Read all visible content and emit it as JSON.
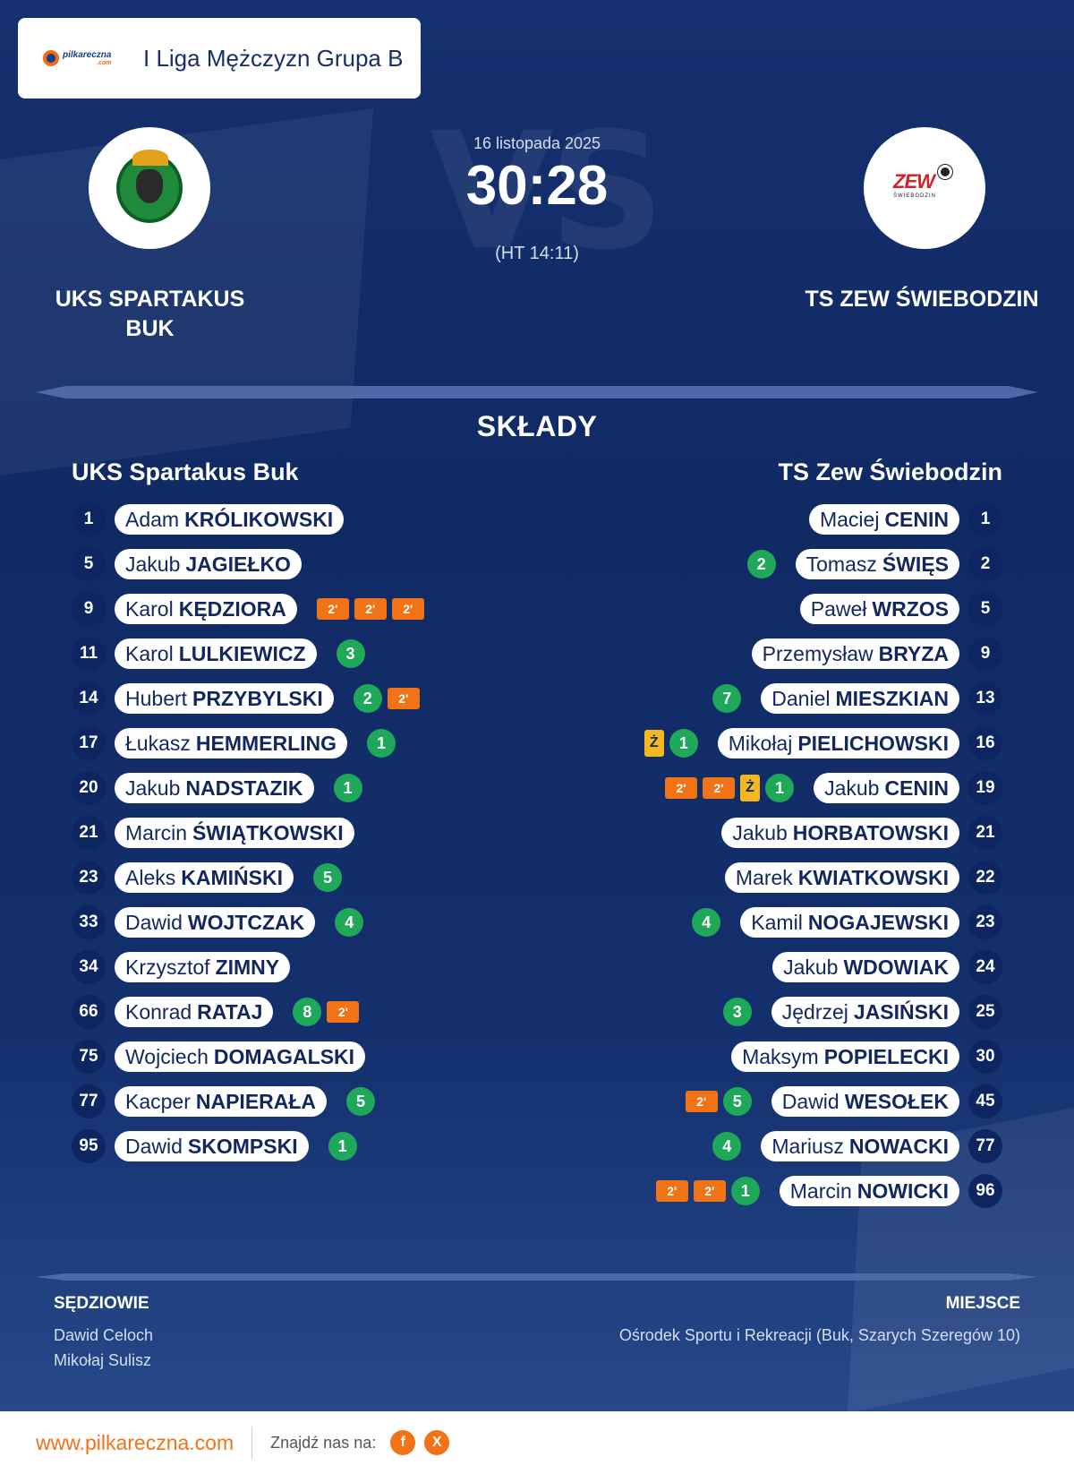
{
  "league": {
    "name": "I Liga Mężczyzn Grupa B",
    "logo_text": "pilkareczna",
    "logo_sub": ".com"
  },
  "match": {
    "date": "16 listopada 2025",
    "score": "30:28",
    "halftime": "(HT 14:11)",
    "vs": "VS"
  },
  "home": {
    "name_big": "UKS SPARTAKUS BUK",
    "name": "UKS Spartakus Buk",
    "players": [
      {
        "num": "1",
        "first": "Adam",
        "last": "KRÓLIKOWSKI",
        "stats": []
      },
      {
        "num": "5",
        "first": "Jakub",
        "last": "JAGIEŁKO",
        "stats": []
      },
      {
        "num": "9",
        "first": "Karol",
        "last": "KĘDZIORA",
        "stats": [
          {
            "t": "pen",
            "v": "2'"
          },
          {
            "t": "pen",
            "v": "2'"
          },
          {
            "t": "pen",
            "v": "2'"
          }
        ]
      },
      {
        "num": "11",
        "first": "Karol",
        "last": "LULKIEWICZ",
        "stats": [
          {
            "t": "goal",
            "v": "3"
          }
        ]
      },
      {
        "num": "14",
        "first": "Hubert",
        "last": "PRZYBYLSKI",
        "stats": [
          {
            "t": "goal",
            "v": "2"
          },
          {
            "t": "pen",
            "v": "2'"
          }
        ]
      },
      {
        "num": "17",
        "first": "Łukasz",
        "last": "HEMMERLING",
        "stats": [
          {
            "t": "goal",
            "v": "1"
          }
        ]
      },
      {
        "num": "20",
        "first": "Jakub",
        "last": "NADSTAZIK",
        "stats": [
          {
            "t": "goal",
            "v": "1"
          }
        ]
      },
      {
        "num": "21",
        "first": "Marcin",
        "last": "ŚWIĄTKOWSKI",
        "stats": []
      },
      {
        "num": "23",
        "first": "Aleks",
        "last": "KAMIŃSKI",
        "stats": [
          {
            "t": "goal",
            "v": "5"
          }
        ]
      },
      {
        "num": "33",
        "first": "Dawid",
        "last": "WOJTCZAK",
        "stats": [
          {
            "t": "goal",
            "v": "4"
          }
        ]
      },
      {
        "num": "34",
        "first": "Krzysztof",
        "last": "ZIMNY",
        "stats": []
      },
      {
        "num": "66",
        "first": "Konrad",
        "last": "RATAJ",
        "stats": [
          {
            "t": "goal",
            "v": "8"
          },
          {
            "t": "pen",
            "v": "2'"
          }
        ]
      },
      {
        "num": "75",
        "first": "Wojciech",
        "last": "DOMAGALSKI",
        "stats": []
      },
      {
        "num": "77",
        "first": "Kacper",
        "last": "NAPIERAŁA",
        "stats": [
          {
            "t": "goal",
            "v": "5"
          }
        ]
      },
      {
        "num": "95",
        "first": "Dawid",
        "last": "SKOMPSKI",
        "stats": [
          {
            "t": "goal",
            "v": "1"
          }
        ]
      }
    ]
  },
  "away": {
    "name_big": "TS ZEW ŚWIEBODZIN",
    "name": "TS Zew Świebodzin",
    "crest_text": "ZEW",
    "crest_sub": "ŚWIEBODZIN",
    "players": [
      {
        "num": "1",
        "first": "Maciej",
        "last": "CENIN",
        "stats": []
      },
      {
        "num": "2",
        "first": "Tomasz",
        "last": "ŚWIĘS",
        "stats": [
          {
            "t": "goal",
            "v": "2"
          }
        ]
      },
      {
        "num": "5",
        "first": "Paweł",
        "last": "WRZOS",
        "stats": []
      },
      {
        "num": "9",
        "first": "Przemysław",
        "last": "BRYZA",
        "stats": []
      },
      {
        "num": "13",
        "first": "Daniel",
        "last": "MIESZKIAN",
        "stats": [
          {
            "t": "goal",
            "v": "7"
          }
        ]
      },
      {
        "num": "16",
        "first": "Mikołaj",
        "last": "PIELICHOWSKI",
        "stats": [
          {
            "t": "yc",
            "v": "Ż"
          },
          {
            "t": "goal",
            "v": "1"
          }
        ]
      },
      {
        "num": "19",
        "first": "Jakub",
        "last": "CENIN",
        "stats": [
          {
            "t": "pen",
            "v": "2'"
          },
          {
            "t": "pen",
            "v": "2'"
          },
          {
            "t": "yc",
            "v": "Ż"
          },
          {
            "t": "goal",
            "v": "1"
          }
        ]
      },
      {
        "num": "21",
        "first": "Jakub",
        "last": "HORBATOWSKI",
        "stats": []
      },
      {
        "num": "22",
        "first": "Marek",
        "last": "KWIATKOWSKI",
        "stats": []
      },
      {
        "num": "23",
        "first": "Kamil",
        "last": "NOGAJEWSKI",
        "stats": [
          {
            "t": "goal",
            "v": "4"
          }
        ]
      },
      {
        "num": "24",
        "first": "Jakub",
        "last": "WDOWIAK",
        "stats": []
      },
      {
        "num": "25",
        "first": "Jędrzej",
        "last": "JASIŃSKI",
        "stats": [
          {
            "t": "goal",
            "v": "3"
          }
        ]
      },
      {
        "num": "30",
        "first": "Maksym",
        "last": "POPIELECKI",
        "stats": []
      },
      {
        "num": "45",
        "first": "Dawid",
        "last": "WESOŁEK",
        "stats": [
          {
            "t": "pen",
            "v": "2'"
          },
          {
            "t": "goal",
            "v": "5"
          }
        ]
      },
      {
        "num": "77",
        "first": "Mariusz",
        "last": "NOWACKI",
        "stats": [
          {
            "t": "goal",
            "v": "4"
          }
        ]
      },
      {
        "num": "96",
        "first": "Marcin",
        "last": "NOWICKI",
        "stats": [
          {
            "t": "pen",
            "v": "2'"
          },
          {
            "t": "pen",
            "v": "2'"
          },
          {
            "t": "goal",
            "v": "1"
          }
        ]
      }
    ]
  },
  "sections": {
    "lineups": "SKŁADY",
    "referees_label": "SĘDZIOWIE",
    "venue_label": "MIEJSCE"
  },
  "referees": [
    "Dawid Celoch",
    "Mikołaj Sulisz"
  ],
  "venue": "Ośrodek Sportu i Rekreacji (Buk, Szarych Szeregów 10)",
  "footer": {
    "url": "www.pilkareczna.com",
    "find_us": "Znajdź nas na:",
    "social": [
      "f",
      "X"
    ]
  },
  "colors": {
    "accent": "#f27216",
    "goal": "#1fa85a",
    "yellow_card": "#f4b81f",
    "navy": "#12275e"
  }
}
